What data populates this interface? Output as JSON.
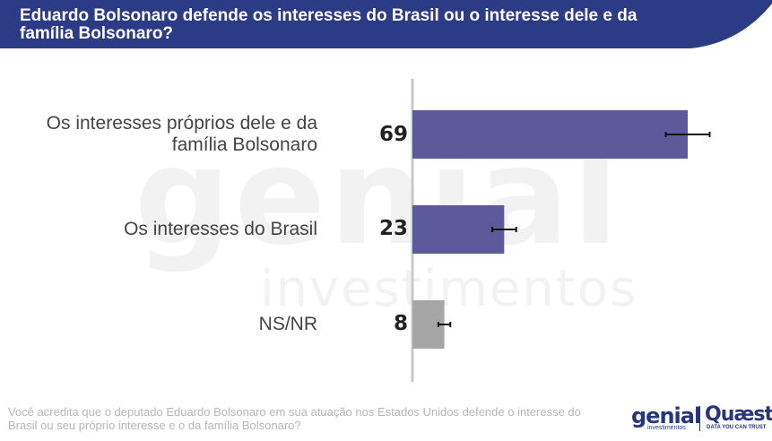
{
  "header": {
    "title": "Eduardo Bolsonaro defende os interesses do Brasil ou o interesse dele e da família Bolsonaro?",
    "bg_color": "#2b3b86"
  },
  "watermark": {
    "big": "genial",
    "small": "investimentos"
  },
  "chart_data": {
    "type": "bar",
    "orientation": "horizontal",
    "title": "Eduardo Bolsonaro defende os interesses do Brasil ou o interesse dele e da família Bolsonaro?",
    "categories": [
      "Os interesses próprios dele e da família Bolsonaro",
      "Os interesses do Brasil",
      "NS/NR"
    ],
    "values": [
      69,
      23,
      8
    ],
    "colors": [
      "#5c5a9a",
      "#5c5a9a",
      "#a6a6a6"
    ],
    "error_bars": true,
    "xlim": [
      0,
      70
    ],
    "grid": false,
    "legend": "none"
  },
  "footnote": "Você acredita que o deputado Eduardo Bolsonaro em sua atuação nos Estados Unidos defende o interesse do Brasil ou seu próprio interesse e o da família Bolsonaro?",
  "logos": {
    "genial": "genial",
    "genial_sub": "investimentos",
    "quaest": "Quæst",
    "quaest_sub": "DATA YOU CAN TRUST"
  }
}
